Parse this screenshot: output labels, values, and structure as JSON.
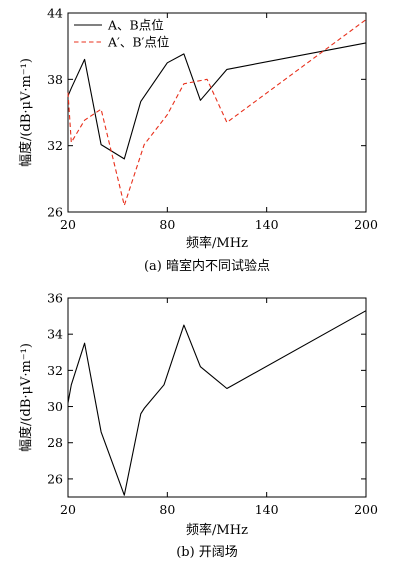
{
  "chart_data": [
    {
      "type": "line",
      "caption": "(a) 暗室内不同试验点",
      "xlabel": "频率/MHz",
      "ylabel": "幅度/(dB·μV·m⁻¹)",
      "xlim": [
        20,
        200
      ],
      "ylim": [
        26,
        44
      ],
      "xticks": [
        20,
        80,
        140,
        200
      ],
      "yticks": [
        26,
        32,
        38,
        44
      ],
      "legend_position": "top-left",
      "series": [
        {
          "name": "A、B点位",
          "color": "#000000",
          "style": "solid",
          "x": [
            20,
            22,
            30,
            40,
            54,
            64,
            80,
            90,
            100,
            116,
            200
          ],
          "y": [
            36.5,
            37.2,
            39.8,
            32.1,
            30.8,
            36.0,
            39.5,
            40.3,
            36.1,
            38.9,
            41.3
          ]
        },
        {
          "name": "A′、B′点位",
          "color": "#e8301c",
          "style": "dashed",
          "x": [
            20,
            22,
            30,
            40,
            54,
            66,
            80,
            90,
            104,
            116,
            200
          ],
          "y": [
            36.8,
            32.3,
            34.3,
            35.3,
            26.6,
            32.1,
            34.8,
            37.6,
            38.0,
            34.1,
            43.4
          ]
        }
      ]
    },
    {
      "type": "line",
      "caption": "(b) 开阔场",
      "xlabel": "频率/MHz",
      "ylabel": "幅度/(dB·μV·m⁻¹)",
      "xlim": [
        20,
        200
      ],
      "ylim": [
        25,
        36
      ],
      "xticks": [
        20,
        80,
        140,
        200
      ],
      "yticks": [
        26,
        28,
        30,
        32,
        34,
        36
      ],
      "series": [
        {
          "color": "#000000",
          "style": "solid",
          "x": [
            20,
            22,
            30,
            40,
            54,
            64,
            66,
            78,
            90,
            100,
            116,
            200
          ],
          "y": [
            30.2,
            31.2,
            33.5,
            28.6,
            25.1,
            29.6,
            29.9,
            31.2,
            34.5,
            32.2,
            31.0,
            35.3
          ]
        }
      ]
    }
  ]
}
